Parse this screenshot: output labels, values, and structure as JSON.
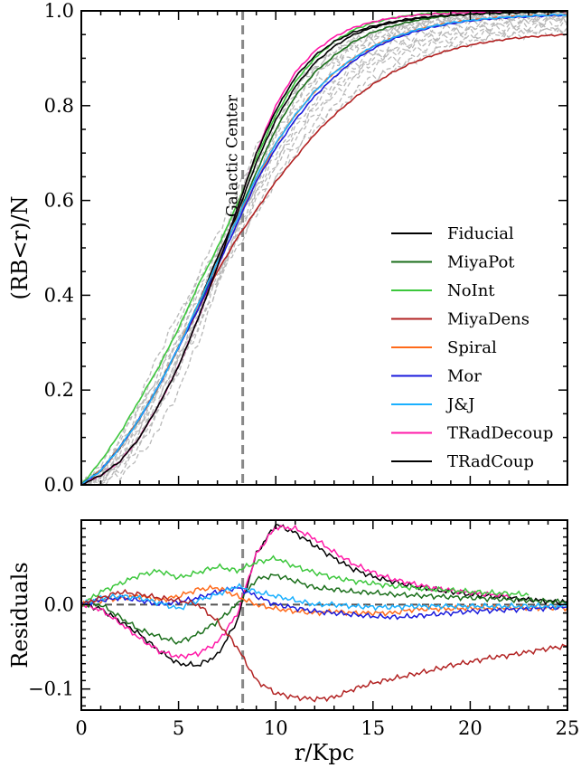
{
  "chart_data": [
    {
      "type": "line",
      "panel": "top",
      "ylabel": "(RB<r)/N",
      "xlabel": "",
      "xlim": [
        0,
        25
      ],
      "ylim": [
        0.0,
        1.0
      ],
      "x_ticks": [
        0,
        5,
        10,
        15,
        20,
        25
      ],
      "y_ticks": [
        "0.0",
        "0.2",
        "0.4",
        "0.6",
        "0.8",
        "1.0"
      ],
      "y_tick_values": [
        0.0,
        0.2,
        0.4,
        0.6,
        0.8,
        1.0
      ],
      "legend_position": "lower-right",
      "annotation": {
        "text": "Galactic Center",
        "x": 8.3
      },
      "x": [
        0,
        1,
        2,
        3,
        4,
        5,
        6,
        7,
        8,
        9,
        10,
        11,
        12,
        13,
        14,
        15,
        16,
        17,
        18,
        19,
        20,
        21,
        22,
        23,
        24,
        25
      ],
      "series": [
        {
          "name": "Fiducial",
          "color": "#000000",
          "values": [
            0.0,
            0.03,
            0.08,
            0.14,
            0.21,
            0.29,
            0.38,
            0.48,
            0.57,
            0.68,
            0.77,
            0.84,
            0.89,
            0.925,
            0.95,
            0.965,
            0.975,
            0.982,
            0.987,
            0.99,
            0.993,
            0.995,
            0.996,
            0.997,
            0.998,
            0.999
          ]
        },
        {
          "name": "MiyaPot",
          "color": "#1a6e1a",
          "values": [
            0.0,
            0.03,
            0.08,
            0.14,
            0.21,
            0.29,
            0.37,
            0.47,
            0.56,
            0.66,
            0.75,
            0.82,
            0.87,
            0.905,
            0.935,
            0.955,
            0.968,
            0.978,
            0.985,
            0.99,
            0.993,
            0.995,
            0.996,
            0.997,
            0.998,
            0.999
          ]
        },
        {
          "name": "NoInt",
          "color": "#3cc73c",
          "values": [
            0.0,
            0.05,
            0.11,
            0.18,
            0.25,
            0.33,
            0.42,
            0.5,
            0.59,
            0.69,
            0.78,
            0.85,
            0.9,
            0.935,
            0.96,
            0.975,
            0.985,
            0.991,
            0.995,
            0.997,
            0.998,
            0.999,
            1.0,
            1.0,
            1.0,
            1.0
          ]
        },
        {
          "name": "MiyaDens",
          "color": "#b22222",
          "values": [
            0.0,
            0.03,
            0.08,
            0.14,
            0.21,
            0.29,
            0.37,
            0.45,
            0.52,
            0.58,
            0.64,
            0.69,
            0.74,
            0.78,
            0.815,
            0.845,
            0.87,
            0.89,
            0.905,
            0.918,
            0.928,
            0.935,
            0.941,
            0.945,
            0.948,
            0.95
          ]
        },
        {
          "name": "Spiral",
          "color": "#ff6a1a",
          "values": [
            0.0,
            0.03,
            0.08,
            0.14,
            0.21,
            0.29,
            0.38,
            0.47,
            0.56,
            0.64,
            0.72,
            0.78,
            0.83,
            0.87,
            0.9,
            0.925,
            0.943,
            0.957,
            0.967,
            0.975,
            0.98,
            0.984,
            0.987,
            0.989,
            0.991,
            0.992
          ]
        },
        {
          "name": "Mor",
          "color": "#1a1adc",
          "values": [
            0.0,
            0.03,
            0.08,
            0.14,
            0.21,
            0.29,
            0.37,
            0.46,
            0.55,
            0.64,
            0.71,
            0.77,
            0.82,
            0.86,
            0.895,
            0.92,
            0.94,
            0.954,
            0.965,
            0.973,
            0.979,
            0.983,
            0.986,
            0.988,
            0.99,
            0.991
          ]
        },
        {
          "name": "J&J",
          "color": "#1ab0ff",
          "values": [
            0.0,
            0.03,
            0.08,
            0.14,
            0.21,
            0.29,
            0.38,
            0.47,
            0.56,
            0.65,
            0.72,
            0.78,
            0.83,
            0.87,
            0.9,
            0.925,
            0.943,
            0.957,
            0.967,
            0.975,
            0.98,
            0.984,
            0.987,
            0.989,
            0.991,
            0.992
          ]
        },
        {
          "name": "TRadDecoup",
          "color": "#ff1aa8",
          "values": [
            0.0,
            0.02,
            0.05,
            0.1,
            0.17,
            0.25,
            0.35,
            0.46,
            0.58,
            0.7,
            0.8,
            0.87,
            0.915,
            0.945,
            0.965,
            0.977,
            0.985,
            0.99,
            0.993,
            0.995,
            0.997,
            0.998,
            0.999,
            1.0,
            1.0,
            1.0
          ]
        },
        {
          "name": "TRadCoup",
          "color": "#000000",
          "values": [
            0.0,
            0.02,
            0.05,
            0.1,
            0.17,
            0.25,
            0.35,
            0.46,
            0.58,
            0.7,
            0.79,
            0.86,
            0.905,
            0.935,
            0.955,
            0.968,
            0.977,
            0.984,
            0.988,
            0.991,
            0.993,
            0.995,
            0.996,
            0.997,
            0.998,
            0.999
          ]
        }
      ],
      "background_samples_color": "#b8b8b8",
      "background_samples": [
        [
          0.0,
          0.0,
          0.02,
          0.06,
          0.12,
          0.2,
          0.3,
          0.42,
          0.54,
          0.64,
          0.72,
          0.78,
          0.83,
          0.86,
          0.89,
          0.91,
          0.93,
          0.945,
          0.955,
          0.963,
          0.97,
          0.975,
          0.98,
          0.983,
          0.986,
          0.988
        ],
        [
          0.0,
          0.01,
          0.04,
          0.1,
          0.18,
          0.27,
          0.36,
          0.46,
          0.55,
          0.63,
          0.7,
          0.76,
          0.81,
          0.85,
          0.88,
          0.9,
          0.92,
          0.935,
          0.947,
          0.956,
          0.963,
          0.969,
          0.974,
          0.978,
          0.981,
          0.983
        ],
        [
          0.0,
          0.02,
          0.07,
          0.15,
          0.24,
          0.33,
          0.41,
          0.49,
          0.57,
          0.65,
          0.73,
          0.8,
          0.86,
          0.9,
          0.93,
          0.95,
          0.963,
          0.972,
          0.979,
          0.984,
          0.987,
          0.99,
          0.992,
          0.993,
          0.994,
          0.995
        ],
        [
          0.0,
          0.03,
          0.09,
          0.18,
          0.28,
          0.36,
          0.43,
          0.5,
          0.58,
          0.67,
          0.76,
          0.83,
          0.88,
          0.915,
          0.94,
          0.955,
          0.967,
          0.975,
          0.981,
          0.985,
          0.988,
          0.99,
          0.992,
          0.993,
          0.994,
          0.995
        ],
        [
          0.0,
          0.01,
          0.05,
          0.11,
          0.19,
          0.26,
          0.33,
          0.42,
          0.52,
          0.6,
          0.67,
          0.73,
          0.78,
          0.82,
          0.855,
          0.88,
          0.9,
          0.915,
          0.928,
          0.938,
          0.946,
          0.952,
          0.957,
          0.961,
          0.964,
          0.966
        ],
        [
          0.0,
          0.04,
          0.1,
          0.17,
          0.25,
          0.34,
          0.44,
          0.53,
          0.62,
          0.71,
          0.79,
          0.85,
          0.89,
          0.92,
          0.94,
          0.955,
          0.965,
          0.973,
          0.979,
          0.984,
          0.987,
          0.99,
          0.992,
          0.993,
          0.994,
          0.995
        ],
        [
          0.0,
          0.02,
          0.06,
          0.12,
          0.2,
          0.29,
          0.38,
          0.45,
          0.51,
          0.58,
          0.65,
          0.71,
          0.76,
          0.8,
          0.83,
          0.86,
          0.88,
          0.9,
          0.915,
          0.928,
          0.938,
          0.946,
          0.952,
          0.957,
          0.96,
          0.962
        ],
        [
          0.0,
          0.0,
          0.03,
          0.08,
          0.16,
          0.25,
          0.35,
          0.47,
          0.59,
          0.69,
          0.77,
          0.83,
          0.87,
          0.9,
          0.925,
          0.94,
          0.952,
          0.962,
          0.97,
          0.976,
          0.981,
          0.985,
          0.988,
          0.99,
          0.992,
          0.993
        ],
        [
          0.0,
          0.03,
          0.08,
          0.16,
          0.23,
          0.31,
          0.39,
          0.47,
          0.55,
          0.62,
          0.69,
          0.75,
          0.8,
          0.84,
          0.87,
          0.895,
          0.915,
          0.93,
          0.942,
          0.952,
          0.96,
          0.966,
          0.971,
          0.975,
          0.978,
          0.98
        ],
        [
          0.0,
          0.01,
          0.05,
          0.12,
          0.21,
          0.31,
          0.4,
          0.48,
          0.56,
          0.65,
          0.74,
          0.81,
          0.86,
          0.895,
          0.92,
          0.94,
          0.955,
          0.965,
          0.973,
          0.979,
          0.984,
          0.987,
          0.99,
          0.992,
          0.993,
          0.994
        ],
        [
          0.0,
          0.02,
          0.07,
          0.14,
          0.22,
          0.3,
          0.37,
          0.44,
          0.5,
          0.57,
          0.64,
          0.7,
          0.75,
          0.79,
          0.82,
          0.85,
          0.875,
          0.895,
          0.91,
          0.923,
          0.933,
          0.941,
          0.947,
          0.952,
          0.955,
          0.958
        ],
        [
          0.0,
          0.02,
          0.05,
          0.1,
          0.17,
          0.26,
          0.37,
          0.49,
          0.6,
          0.7,
          0.78,
          0.84,
          0.88,
          0.91,
          0.935,
          0.95,
          0.962,
          0.971,
          0.978,
          0.983,
          0.987,
          0.99,
          0.992,
          0.993,
          0.994,
          0.995
        ],
        [
          0.0,
          0.03,
          0.07,
          0.13,
          0.2,
          0.27,
          0.35,
          0.44,
          0.53,
          0.61,
          0.68,
          0.74,
          0.79,
          0.83,
          0.865,
          0.89,
          0.91,
          0.925,
          0.938,
          0.948,
          0.956,
          0.962,
          0.967,
          0.971,
          0.974,
          0.976
        ],
        [
          0.0,
          0.01,
          0.04,
          0.09,
          0.16,
          0.24,
          0.33,
          0.43,
          0.53,
          0.63,
          0.72,
          0.79,
          0.84,
          0.88,
          0.91,
          0.93,
          0.946,
          0.958,
          0.967,
          0.974,
          0.98,
          0.984,
          0.987,
          0.989,
          0.991,
          0.992
        ]
      ]
    },
    {
      "type": "line",
      "panel": "bottom",
      "ylabel": "Residuals",
      "xlabel": "r/Kpc",
      "xlim": [
        0,
        25
      ],
      "ylim": [
        -0.125,
        0.1
      ],
      "x_ticks": [
        0,
        5,
        10,
        15,
        20,
        25
      ],
      "y_ticks": [
        "0.0",
        "−0.1"
      ],
      "y_tick_values": [
        0.0,
        -0.1
      ],
      "reference_line": 0.0,
      "annotation_x": 8.3,
      "x": [
        0,
        1,
        2,
        3,
        4,
        5,
        6,
        7,
        8,
        9,
        10,
        11,
        12,
        13,
        14,
        15,
        16,
        17,
        18,
        19,
        20,
        21,
        22,
        23,
        24,
        25
      ],
      "series": [
        {
          "name": "TRadCoup",
          "color": "#000000",
          "values": [
            0.0,
            -0.005,
            -0.02,
            -0.035,
            -0.055,
            -0.07,
            -0.072,
            -0.06,
            -0.02,
            0.06,
            0.095,
            0.085,
            0.07,
            0.055,
            0.042,
            0.033,
            0.027,
            0.022,
            0.018,
            0.015,
            0.012,
            0.01,
            0.008,
            0.006,
            0.004,
            0.003
          ]
        },
        {
          "name": "TRadDecoup",
          "color": "#ff1aa8",
          "values": [
            0.0,
            -0.006,
            -0.022,
            -0.04,
            -0.055,
            -0.062,
            -0.058,
            -0.045,
            -0.012,
            0.06,
            0.092,
            0.09,
            0.078,
            0.062,
            0.048,
            0.038,
            0.03,
            0.025,
            0.02,
            0.017,
            0.014,
            0.012,
            0.01,
            null,
            null,
            null
          ]
        },
        {
          "name": "NoInt",
          "color": "#3cc73c",
          "values": [
            0.0,
            0.015,
            0.025,
            0.035,
            0.04,
            0.032,
            0.038,
            0.045,
            0.04,
            0.05,
            0.055,
            0.045,
            0.038,
            0.032,
            0.028,
            0.025,
            0.022,
            0.02,
            0.018,
            0.017,
            0.015,
            0.014,
            0.013,
            0.012,
            null,
            null
          ]
        },
        {
          "name": "MiyaPot",
          "color": "#1a6e1a",
          "values": [
            0.0,
            0.0,
            -0.015,
            -0.03,
            -0.038,
            -0.045,
            -0.035,
            -0.02,
            0.0,
            0.03,
            0.035,
            0.028,
            0.02,
            0.018,
            0.015,
            0.014,
            0.012,
            0.011,
            0.01,
            0.009,
            0.008,
            0.007,
            0.006,
            0.005,
            0.004,
            0.003
          ]
        },
        {
          "name": "Spiral",
          "color": "#ff6a1a",
          "values": [
            0.0,
            0.005,
            0.008,
            0.01,
            0.005,
            0.01,
            0.018,
            0.02,
            0.01,
            0.0,
            -0.005,
            -0.008,
            -0.01,
            -0.008,
            -0.01,
            -0.01,
            -0.01,
            -0.006,
            -0.005,
            -0.005,
            -0.004,
            -0.004,
            -0.004,
            -0.004,
            -0.004,
            -0.004
          ]
        },
        {
          "name": "Mor",
          "color": "#1a1adc",
          "values": [
            0.0,
            0.005,
            0.008,
            0.005,
            0.0,
            0.003,
            0.008,
            0.015,
            0.02,
            0.01,
            0.0,
            -0.004,
            -0.008,
            -0.01,
            -0.012,
            -0.014,
            -0.015,
            -0.014,
            -0.012,
            -0.01,
            -0.008,
            -0.007,
            -0.006,
            -0.005,
            -0.004,
            -0.003
          ]
        },
        {
          "name": "J&J",
          "color": "#1ab0ff",
          "values": [
            0.0,
            0.008,
            0.01,
            0.008,
            0.002,
            -0.005,
            0.005,
            0.012,
            0.022,
            0.015,
            0.01,
            0.005,
            0.0,
            0.0,
            -0.002,
            -0.003,
            -0.003,
            -0.002,
            -0.002,
            -0.002,
            -0.002,
            -0.002,
            -0.002,
            -0.002,
            -0.002,
            -0.002
          ]
        },
        {
          "name": "MiyaDens",
          "color": "#b22222",
          "values": [
            0.0,
            0.008,
            0.015,
            0.012,
            0.008,
            0.005,
            0.0,
            -0.02,
            -0.05,
            -0.09,
            -0.105,
            -0.11,
            -0.112,
            -0.11,
            -0.1,
            -0.093,
            -0.088,
            -0.083,
            -0.078,
            -0.072,
            -0.068,
            -0.063,
            -0.06,
            -0.056,
            -0.052,
            -0.049
          ]
        }
      ]
    }
  ]
}
